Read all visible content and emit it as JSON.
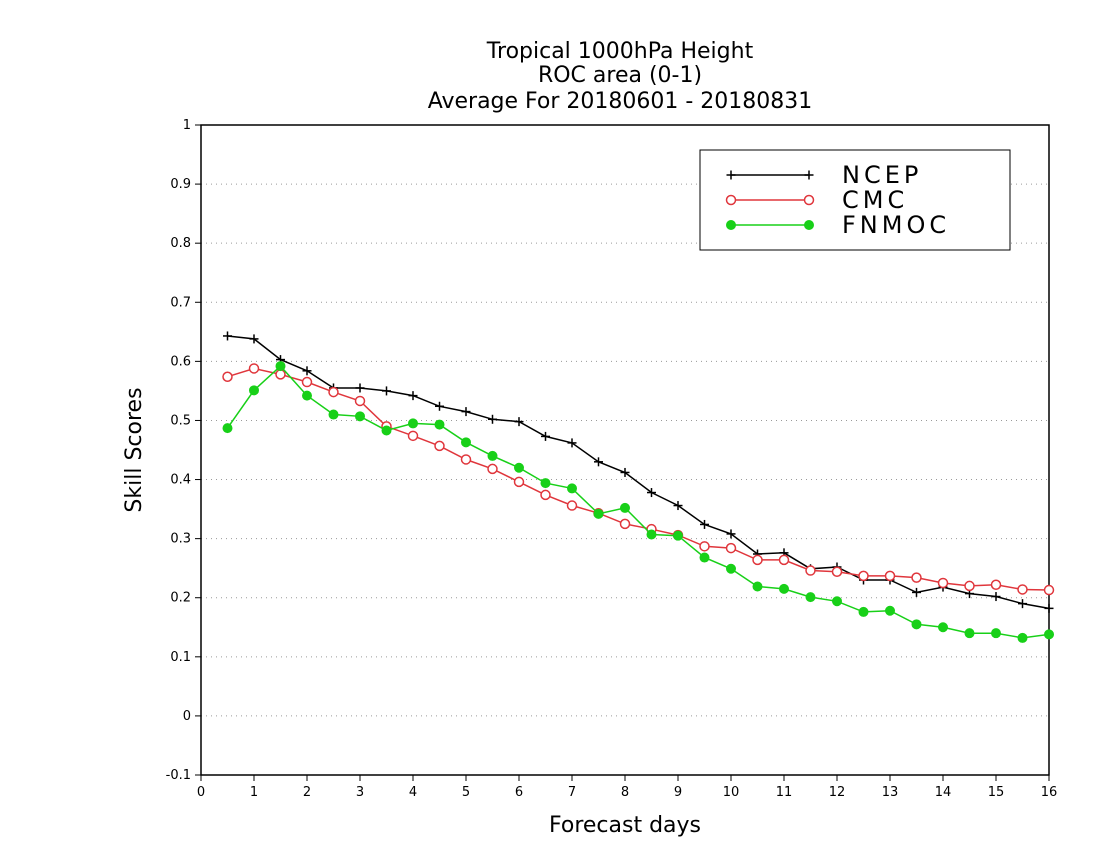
{
  "chart_data": {
    "type": "line",
    "title_lines": [
      "Tropical 1000hPa Height",
      "ROC area (0-1)",
      "Average For 20180601 - 20180831"
    ],
    "xlabel": "Forecast days",
    "ylabel": "Skill Scores",
    "xlim": [
      0,
      16
    ],
    "ylim": [
      -0.1,
      1
    ],
    "x_ticks": [
      0,
      1,
      2,
      3,
      4,
      5,
      6,
      7,
      8,
      9,
      10,
      11,
      12,
      13,
      14,
      15,
      16
    ],
    "y_ticks": [
      -0.1,
      0,
      0.1,
      0.2,
      0.3,
      0.4,
      0.5,
      0.6,
      0.7,
      0.8,
      0.9,
      1
    ],
    "y_tick_labels": [
      "-0.1",
      "0",
      "0.1",
      "0.2",
      "0.3",
      "0.4",
      "0.5",
      "0.6",
      "0.7",
      "0.8",
      "0.9",
      "1"
    ],
    "grid": "horizontal dotted",
    "legend_position": "top-right",
    "x": [
      0.5,
      1,
      1.5,
      2,
      2.5,
      3,
      3.5,
      4,
      4.5,
      5,
      5.5,
      6,
      6.5,
      7,
      7.5,
      8,
      8.5,
      9,
      9.5,
      10,
      10.5,
      11,
      11.5,
      12,
      12.5,
      13,
      13.5,
      14,
      14.5,
      15,
      15.5,
      16
    ],
    "series": [
      {
        "name": "NCEP",
        "color": "#000000",
        "marker": "plus",
        "values": [
          0.643,
          0.638,
          0.603,
          0.584,
          0.555,
          0.555,
          0.55,
          0.542,
          0.524,
          0.515,
          0.502,
          0.498,
          0.473,
          0.462,
          0.43,
          0.412,
          0.378,
          0.356,
          0.324,
          0.308,
          0.274,
          0.276,
          0.249,
          0.252,
          0.23,
          0.23,
          0.209,
          0.218,
          0.207,
          0.202,
          0.19,
          0.182
        ]
      },
      {
        "name": "CMC",
        "color": "#e0363c",
        "marker": "open-circle",
        "values": [
          0.574,
          0.588,
          0.578,
          0.565,
          0.548,
          0.533,
          0.49,
          0.474,
          0.457,
          0.434,
          0.418,
          0.396,
          0.374,
          0.356,
          0.343,
          0.325,
          0.316,
          0.306,
          0.287,
          0.284,
          0.264,
          0.264,
          0.246,
          0.244,
          0.237,
          0.237,
          0.234,
          0.225,
          0.22,
          0.222,
          0.214,
          0.213
        ]
      },
      {
        "name": "FNMOC",
        "color": "#18d018",
        "marker": "filled-circle",
        "values": [
          0.487,
          0.551,
          0.592,
          0.542,
          0.51,
          0.507,
          0.483,
          0.495,
          0.493,
          0.463,
          0.44,
          0.42,
          0.394,
          0.385,
          0.342,
          0.352,
          0.307,
          0.305,
          0.268,
          0.249,
          0.219,
          0.215,
          0.201,
          0.194,
          0.176,
          0.178,
          0.155,
          0.15,
          0.14,
          0.14,
          0.132,
          0.138
        ]
      }
    ]
  }
}
